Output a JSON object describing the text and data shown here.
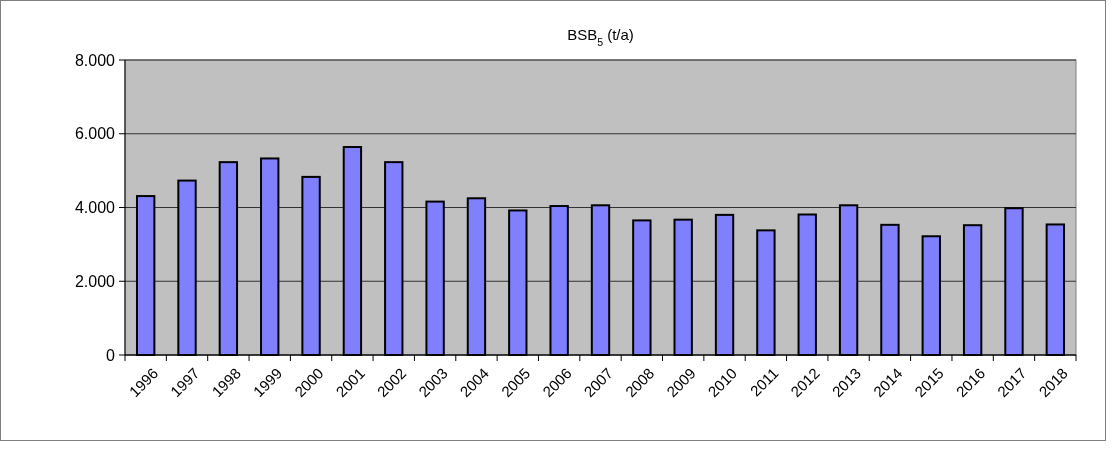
{
  "chart_data": {
    "type": "bar",
    "title": "BSB$_{5}$  (t/a)",
    "categories": [
      "1996",
      "1997",
      "1998",
      "1999",
      "2000",
      "2001",
      "2002",
      "2003",
      "2004",
      "2005",
      "2006",
      "2007",
      "2008",
      "2009",
      "2010",
      "2011",
      "2012",
      "2013",
      "2014",
      "2015",
      "2016",
      "2017",
      "2018"
    ],
    "values": [
      4310,
      4730,
      5230,
      5330,
      4830,
      5640,
      5230,
      4160,
      4250,
      3920,
      4040,
      4060,
      3650,
      3670,
      3800,
      3380,
      3810,
      4060,
      3530,
      3220,
      3520,
      3980,
      3540
    ],
    "color": "#8080ff",
    "ylim": [
      0,
      8000
    ],
    "yticks": [
      {
        "value": 0,
        "label": "0"
      },
      {
        "value": 2000,
        "label": "2.000"
      },
      {
        "value": 4000,
        "label": "4.000"
      },
      {
        "value": 6000,
        "label": "6.000"
      },
      {
        "value": 8000,
        "label": "8.000"
      }
    ],
    "grid": "y"
  }
}
